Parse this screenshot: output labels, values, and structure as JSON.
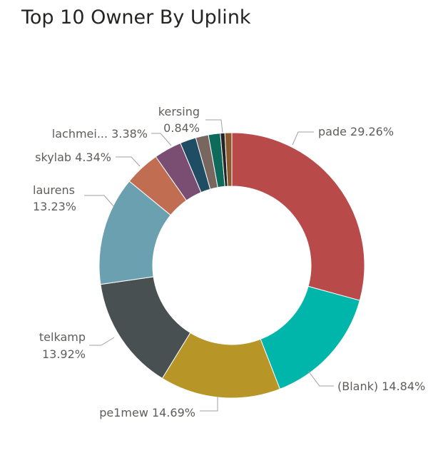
{
  "chart_data": {
    "type": "pie",
    "style": "donut",
    "title": "Top 10 Owner By Uplink",
    "slices": [
      {
        "category": "pade",
        "percent": 29.26,
        "label": "pade 29.26%",
        "color": "#B84A4A"
      },
      {
        "category": "(Blank)",
        "percent": 14.84,
        "label": "(Blank) 14.84%",
        "color": "#00B5A9"
      },
      {
        "category": "pe1mew",
        "percent": 14.69,
        "label": "pe1mew 14.69%",
        "color": "#B79526"
      },
      {
        "category": "telkamp",
        "percent": 13.92,
        "label_lines": [
          "telkamp",
          "13.92%"
        ],
        "color": "#485052"
      },
      {
        "category": "laurens",
        "percent": 13.23,
        "label_lines": [
          "laurens",
          "13.23%"
        ],
        "color": "#6BA0B1"
      },
      {
        "category": "skylab",
        "percent": 4.34,
        "label": "skylab 4.34%",
        "color": "#C06D52"
      },
      {
        "category": "lachmei...",
        "percent": 3.38,
        "label": "lachmei... 3.38%",
        "color": "#7A4E73"
      },
      {
        "category": "",
        "percent": 1.95,
        "color": "#1F4E64"
      },
      {
        "category": "",
        "percent": 1.55,
        "color": "#78665F"
      },
      {
        "category": "",
        "percent": 1.45,
        "color": "#0E6A5A"
      },
      {
        "category": "",
        "percent": 0.55,
        "color": "#252526"
      },
      {
        "category": "kersing",
        "percent": 0.84,
        "label_lines": [
          "kersing",
          "0.84%"
        ],
        "color": "#8A5A2E"
      }
    ]
  }
}
